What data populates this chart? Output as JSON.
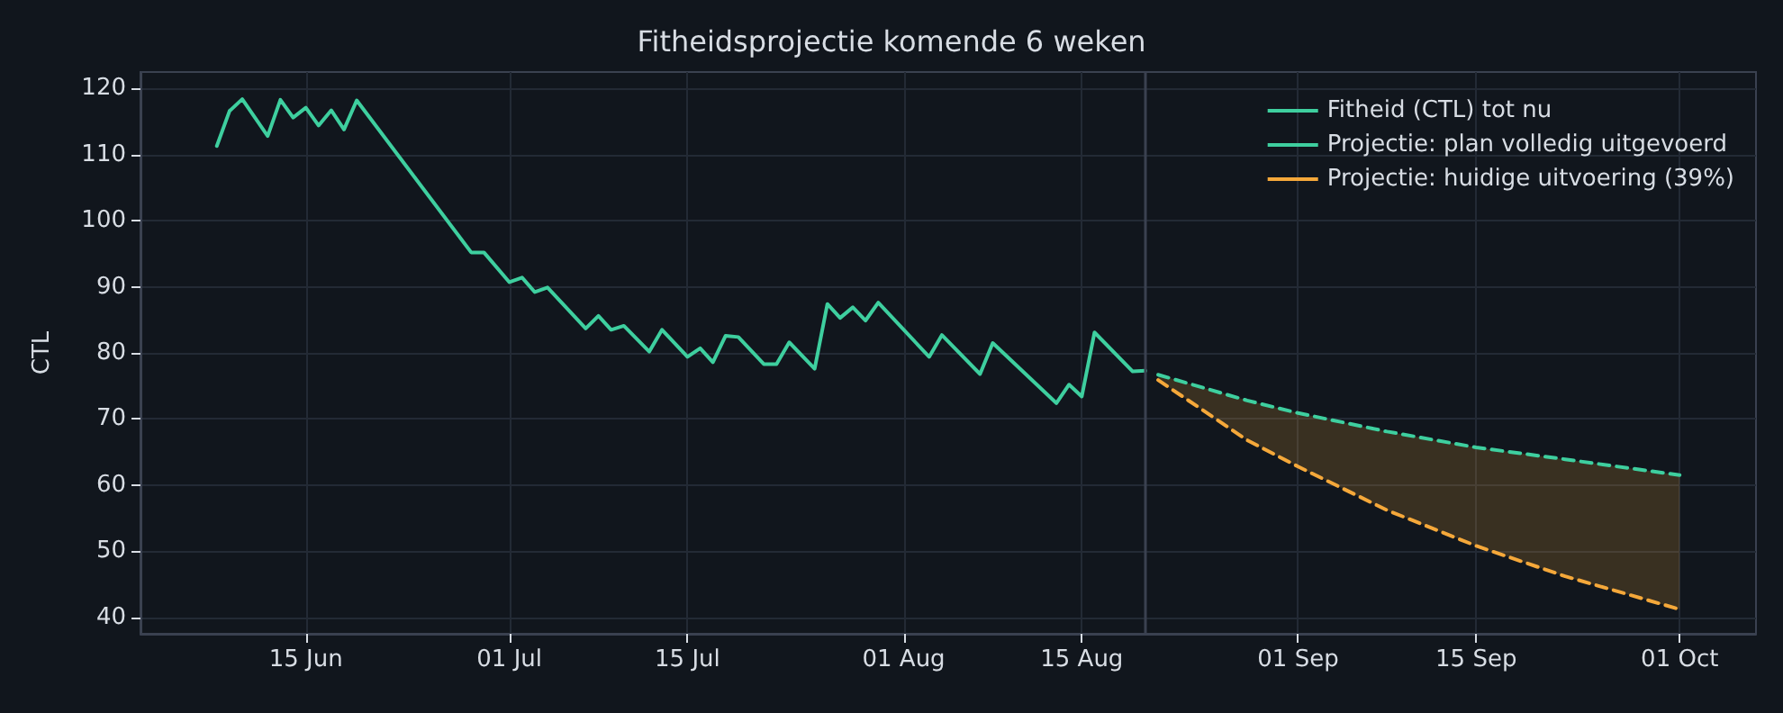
{
  "chart_data": {
    "type": "line",
    "title": "Fitheidsprojectie komende 6 weken",
    "ylabel": "CTL",
    "xlim": [
      "--06-02",
      "--10-07"
    ],
    "xticks": [
      {
        "value": "--06-15",
        "label": "15 Jun"
      },
      {
        "value": "--07-01",
        "label": "01 Jul"
      },
      {
        "value": "--07-15",
        "label": "15 Jul"
      },
      {
        "value": "--08-01",
        "label": "01 Aug"
      },
      {
        "value": "--08-15",
        "label": "15 Aug"
      },
      {
        "value": "--09-01",
        "label": "01 Sep"
      },
      {
        "value": "--09-15",
        "label": "15 Sep"
      },
      {
        "value": "--10-01",
        "label": "01 Oct"
      }
    ],
    "ylim": [
      37.5,
      122.5
    ],
    "yticks": [
      40,
      50,
      60,
      70,
      80,
      90,
      100,
      110,
      120
    ],
    "grid": true,
    "legend": "top right",
    "ref_lines": [
      {
        "axis": "x",
        "value": "--08-20",
        "color": "#3a4150"
      }
    ],
    "series": [
      {
        "name": "Fitheid (CTL) tot nu",
        "color": "#3ecf9f",
        "line_style": "solid",
        "x": [
          "--06-08",
          "--06-09",
          "--06-10",
          "--06-12",
          "--06-13",
          "--06-14",
          "--06-15",
          "--06-16",
          "--06-17",
          "--06-18",
          "--06-19",
          "--06-28",
          "--06-29",
          "--07-01",
          "--07-02",
          "--07-03",
          "--07-04",
          "--07-07",
          "--07-08",
          "--07-09",
          "--07-10",
          "--07-12",
          "--07-13",
          "--07-15",
          "--07-16",
          "--07-17",
          "--07-18",
          "--07-19",
          "--07-21",
          "--07-22",
          "--07-23",
          "--07-25",
          "--07-26",
          "--07-27",
          "--07-28",
          "--07-29",
          "--07-30",
          "--08-03",
          "--08-04",
          "--08-07",
          "--08-08",
          "--08-13",
          "--08-14",
          "--08-15",
          "--08-16",
          "--08-19",
          "--08-20"
        ],
        "values": [
          111.3,
          116.6,
          118.4,
          112.8,
          118.3,
          115.6,
          117.1,
          114.4,
          116.7,
          113.8,
          118.2,
          95.2,
          95.2,
          90.7,
          91.4,
          89.2,
          89.9,
          83.7,
          85.6,
          83.5,
          84.1,
          80.2,
          83.5,
          79.4,
          80.7,
          78.6,
          82.6,
          82.4,
          78.3,
          78.3,
          81.6,
          77.6,
          87.4,
          85.3,
          86.9,
          84.9,
          87.6,
          79.4,
          82.7,
          76.8,
          81.5,
          72.4,
          75.2,
          73.4,
          83.1,
          77.2,
          77.3
        ]
      },
      {
        "name": "Projectie: plan volledig uitgevoerd",
        "color": "#3ecf9f",
        "line_style": "dashed",
        "x": [
          "--08-21",
          "--08-28",
          "--09-01",
          "--09-08",
          "--09-15",
          "--09-22",
          "--10-01"
        ],
        "values": [
          76.7,
          72.8,
          70.9,
          68.1,
          65.7,
          63.9,
          61.5
        ]
      },
      {
        "name": "Projectie: huidige uitvoering (39%)",
        "color": "#f5a83a",
        "line_style": "dashed",
        "x": [
          "--08-21",
          "--08-28",
          "--09-01",
          "--09-08",
          "--09-15",
          "--09-22",
          "--10-01"
        ],
        "values": [
          75.9,
          66.8,
          62.8,
          56.2,
          50.8,
          46.2,
          41.2
        ],
        "lower": [
          75.9,
          66.8,
          62.8,
          56.2,
          50.8,
          46.2,
          41.2
        ],
        "upper": [
          76.7,
          72.8,
          70.9,
          68.1,
          65.7,
          63.9,
          61.5
        ]
      }
    ]
  }
}
